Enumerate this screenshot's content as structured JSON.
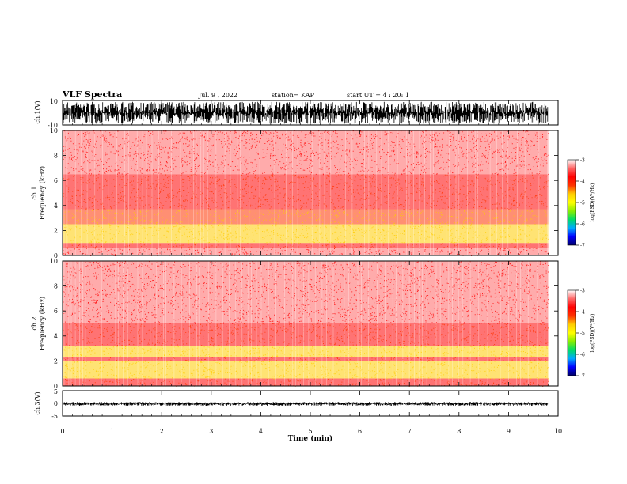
{
  "header": {
    "title": "VLF Spectra",
    "date": "Jul. 9 , 2022",
    "station": "station= KAP",
    "start": "start UT = 4 : 20: 1"
  },
  "colors": {
    "waveform": "#000000",
    "background": "#ffffff",
    "colormap": [
      "#000066",
      "#0000ff",
      "#00aaff",
      "#00dd66",
      "#88ee00",
      "#ffff00",
      "#ffcc00",
      "#ff3300",
      "#ff0000",
      "#ff6666",
      "#ffffff"
    ]
  },
  "chart_data": [
    {
      "type": "line",
      "panel": "ch1-waveform",
      "ylabel": "ch.1(V)",
      "ylim": [
        -10,
        10
      ],
      "yticks": [
        "10",
        "-10"
      ],
      "xlim": [
        0,
        10
      ],
      "series": [
        {
          "x": [
            0,
            9.8
          ],
          "amplitude_range": [
            -10,
            10
          ]
        }
      ]
    },
    {
      "type": "heatmap",
      "panel": "ch1-spectrogram",
      "ylabel_top": "ch.1",
      "ylabel": "Frequency (kHz)",
      "ylim": [
        0,
        10
      ],
      "yticks": [
        "0",
        "2",
        "4",
        "6",
        "8",
        "10"
      ],
      "xlim": [
        0,
        10
      ],
      "data_x_end": 9.8,
      "bands": [
        {
          "from": 0,
          "to": 0.6,
          "logpsd": -3.6
        },
        {
          "from": 0.6,
          "to": 1.0,
          "logpsd": -3.9
        },
        {
          "from": 1.0,
          "to": 2.5,
          "logpsd": -4.4
        },
        {
          "from": 2.5,
          "to": 3.1,
          "logpsd": -4.1
        },
        {
          "from": 3.1,
          "to": 3.7,
          "logpsd": -4.3
        },
        {
          "from": 3.7,
          "to": 4.5,
          "logpsd": -4.0
        },
        {
          "from": 4.5,
          "to": 6.5,
          "logpsd": -3.7
        },
        {
          "from": 6.5,
          "to": 10,
          "logpsd": -3.3
        }
      ],
      "colorbar": {
        "label": "log(PSD)(V²/Hz)",
        "range": [
          -7,
          -3
        ],
        "ticks": [
          "-3",
          "-4",
          "-5",
          "-6",
          "-7"
        ]
      }
    },
    {
      "type": "heatmap",
      "panel": "ch2-spectrogram",
      "ylabel_top": "ch.2",
      "ylabel": "Frequency (kHz)",
      "ylim": [
        0,
        10
      ],
      "yticks": [
        "0",
        "2",
        "4",
        "6",
        "8",
        "10"
      ],
      "xlim": [
        0,
        10
      ],
      "data_x_end": 9.8,
      "bands": [
        {
          "from": 0,
          "to": 0.6,
          "logpsd": -3.7
        },
        {
          "from": 0.6,
          "to": 2.0,
          "logpsd": -4.4
        },
        {
          "from": 2.0,
          "to": 2.3,
          "logpsd": -4.0
        },
        {
          "from": 2.3,
          "to": 3.2,
          "logpsd": -4.4
        },
        {
          "from": 3.2,
          "to": 5.0,
          "logpsd": -3.9
        },
        {
          "from": 5.0,
          "to": 7.0,
          "logpsd": -3.6
        },
        {
          "from": 7.0,
          "to": 10,
          "logpsd": -3.3
        }
      ],
      "colorbar": {
        "label": "log(PSD)(V²/Hz)",
        "range": [
          -7,
          -3
        ],
        "ticks": [
          "-3",
          "-4",
          "-5",
          "-6",
          "-7"
        ]
      }
    },
    {
      "type": "line",
      "panel": "ch3-waveform",
      "ylabel": "ch.3(V)",
      "ylim": [
        -5,
        5
      ],
      "yticks": [
        "5",
        "0",
        "-5"
      ],
      "xlabel": "Time (min)",
      "xlim": [
        0,
        10
      ],
      "xticks": [
        "0",
        "1",
        "2",
        "3",
        "4",
        "5",
        "6",
        "7",
        "8",
        "9",
        "10"
      ],
      "series": [
        {
          "x": [
            0,
            9.8
          ],
          "amplitude_range": [
            -1,
            0.6
          ]
        }
      ]
    }
  ]
}
